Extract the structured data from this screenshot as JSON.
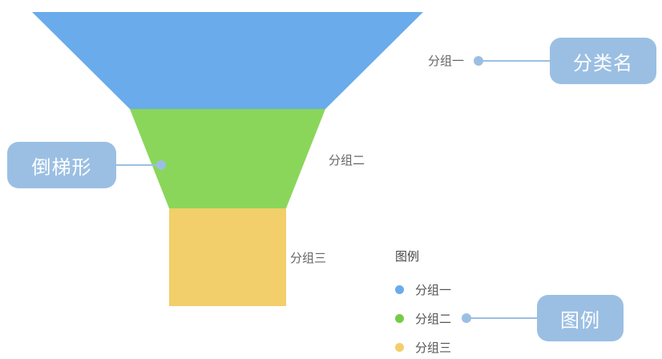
{
  "funnel": {
    "segments": [
      {
        "label": "分组一",
        "color": "#6aabeb"
      },
      {
        "label": "分组二",
        "color": "#8ad65a"
      },
      {
        "label": "分组三",
        "color": "#f2cf6a"
      }
    ]
  },
  "legend": {
    "title": "图例",
    "items": [
      {
        "label": "分组一",
        "color": "#6aabeb"
      },
      {
        "label": "分组二",
        "color": "#74cc47"
      },
      {
        "label": "分组三",
        "color": "#f2cf6a"
      }
    ]
  },
  "callouts": {
    "category_name": "分类名",
    "inverted_trapezoid": "倒梯形",
    "legend": "图例",
    "color": "#9bbfe3"
  }
}
